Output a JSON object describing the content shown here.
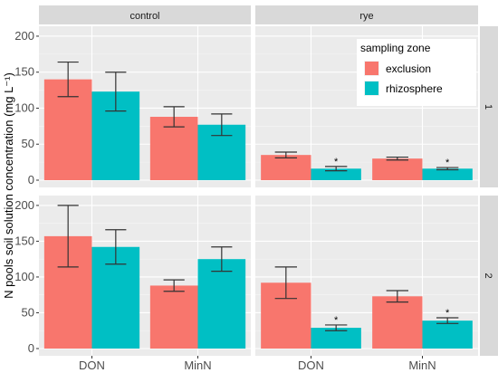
{
  "chart_data": {
    "type": "bar",
    "ylabel": "N pools soil solution concentration (mg L⁻¹)",
    "y_ticks": [
      "0",
      "50",
      "100",
      "150",
      "200"
    ],
    "ylim": [
      0,
      210
    ],
    "categories": [
      "DON",
      "MinN"
    ],
    "column_facets": [
      "control",
      "rye"
    ],
    "row_facets": [
      "1",
      "2"
    ],
    "legend": {
      "title": "sampling zone",
      "position": "inside-top-right",
      "entries": [
        {
          "name": "exclusion",
          "color": "#F8766D"
        },
        {
          "name": "rhizosphere",
          "color": "#00BFC4"
        }
      ]
    },
    "grid": true,
    "panels": [
      {
        "col": "control",
        "row": "1",
        "series": [
          {
            "name": "exclusion",
            "values": [
              140,
              88
            ],
            "errors": [
              24,
              14
            ],
            "sig": [
              "",
              ""
            ]
          },
          {
            "name": "rhizosphere",
            "values": [
              123,
              77
            ],
            "errors": [
              27,
              15
            ],
            "sig": [
              "",
              ""
            ]
          }
        ]
      },
      {
        "col": "rye",
        "row": "1",
        "series": [
          {
            "name": "exclusion",
            "values": [
              35,
              30
            ],
            "errors": [
              4,
              2
            ],
            "sig": [
              "",
              ""
            ]
          },
          {
            "name": "rhizosphere",
            "values": [
              16,
              16
            ],
            "errors": [
              3,
              1.5
            ],
            "sig": [
              "*",
              "*"
            ]
          }
        ]
      },
      {
        "col": "control",
        "row": "2",
        "series": [
          {
            "name": "exclusion",
            "values": [
              157,
              88
            ],
            "errors": [
              43,
              8
            ],
            "sig": [
              "",
              ""
            ]
          },
          {
            "name": "rhizosphere",
            "values": [
              142,
              125
            ],
            "errors": [
              24,
              17
            ],
            "sig": [
              "",
              ""
            ]
          }
        ]
      },
      {
        "col": "rye",
        "row": "2",
        "series": [
          {
            "name": "exclusion",
            "values": [
              92,
              73
            ],
            "errors": [
              22,
              8
            ],
            "sig": [
              "",
              ""
            ]
          },
          {
            "name": "rhizosphere",
            "values": [
              29,
              39
            ],
            "errors": [
              4,
              4
            ],
            "sig": [
              "*",
              "*"
            ]
          }
        ]
      }
    ]
  }
}
